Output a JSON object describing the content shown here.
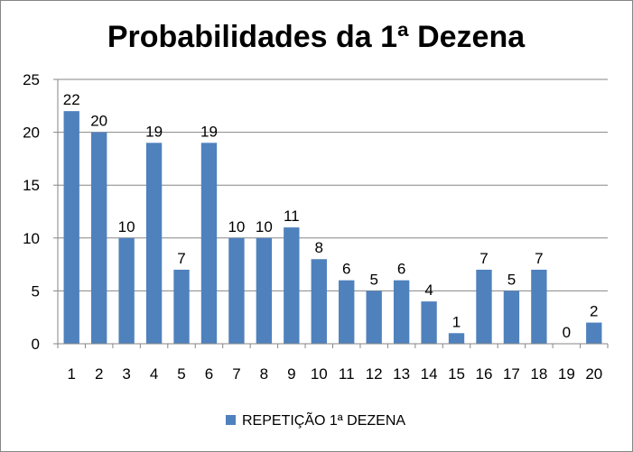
{
  "chart_data": {
    "type": "bar",
    "title": "Probabilidades da 1ª Dezena",
    "xlabel": "",
    "ylabel": "",
    "categories": [
      "1",
      "2",
      "3",
      "4",
      "5",
      "6",
      "7",
      "8",
      "9",
      "10",
      "11",
      "12",
      "13",
      "14",
      "15",
      "16",
      "17",
      "18",
      "19",
      "20"
    ],
    "series": [
      {
        "name": "REPETIÇÃO 1ª DEZENA",
        "values": [
          22,
          20,
          10,
          19,
          7,
          19,
          10,
          10,
          11,
          8,
          6,
          5,
          6,
          4,
          1,
          7,
          5,
          7,
          0,
          2
        ],
        "color": "#4F81BD"
      }
    ],
    "ylim": [
      0,
      25
    ],
    "yticks": [
      0,
      5,
      10,
      15,
      20,
      25
    ],
    "grid": true,
    "data_labels": true,
    "legend": "bottom"
  }
}
